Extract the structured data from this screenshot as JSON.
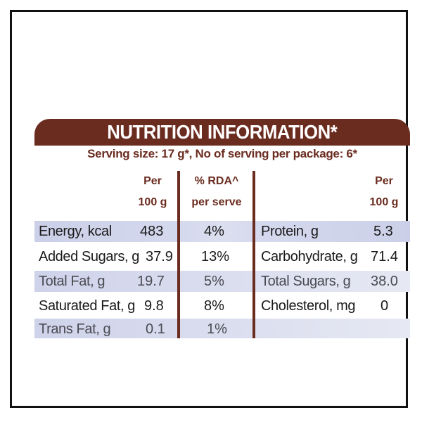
{
  "title": "NUTRITION INFORMATION*",
  "serving": "Serving size: 17 g*, No of serving per package: 6*",
  "headers": {
    "per100_line1": "Per",
    "per100_line2": "100 g",
    "rda_line1": "% RDA^",
    "rda_line2": "per serve",
    "right_per100_line1": "Per",
    "right_per100_line2": "100 g"
  },
  "rows": [
    {
      "left_label": "Energy, kcal",
      "left_value": "483",
      "rda": "4%",
      "right_label": "Protein, g",
      "right_value": "5.3"
    },
    {
      "left_label": "Added Sugars, g",
      "left_value": "37.9",
      "rda": "13%",
      "right_label": "Carbohydrate, g",
      "right_value": "71.4"
    },
    {
      "left_label": "Total Fat, g",
      "left_value": "19.7",
      "rda": "5%",
      "right_label": "Total Sugars, g",
      "right_value": "38.0"
    },
    {
      "left_label": "Saturated Fat, g",
      "left_value": "9.8",
      "rda": "8%",
      "right_label": "Cholesterol, mg",
      "right_value": "0"
    },
    {
      "left_label": "Trans Fat, g",
      "left_value": "0.1",
      "rda": "1%",
      "right_label": "",
      "right_value": ""
    }
  ],
  "colors": {
    "brand": "#6b2c20",
    "row_shade": "#cbd0e8"
  }
}
